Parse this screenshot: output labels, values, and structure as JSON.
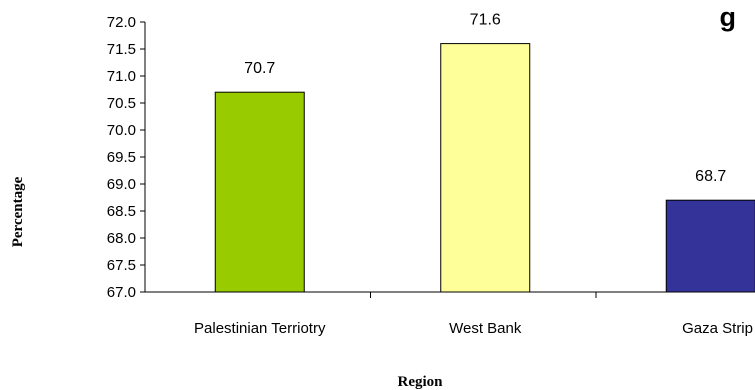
{
  "chart_data": {
    "type": "bar",
    "title": "g",
    "xlabel": "Region",
    "ylabel": "Percentage",
    "categories": [
      "Palestinian Terriotry",
      "West Bank",
      "Gaza Strip"
    ],
    "values": [
      70.7,
      71.6,
      68.7
    ],
    "data_labels": [
      "70.7",
      "71.6",
      "68.7"
    ],
    "ylim": [
      67.0,
      72.0
    ],
    "yticks": [
      "67.0",
      "67.5",
      "68.0",
      "68.5",
      "69.0",
      "69.5",
      "70.0",
      "70.5",
      "71.0",
      "71.5",
      "72.0"
    ],
    "colors": [
      "#99cc00",
      "#ffff99",
      "#333399"
    ],
    "grid": false,
    "legend": "none"
  }
}
